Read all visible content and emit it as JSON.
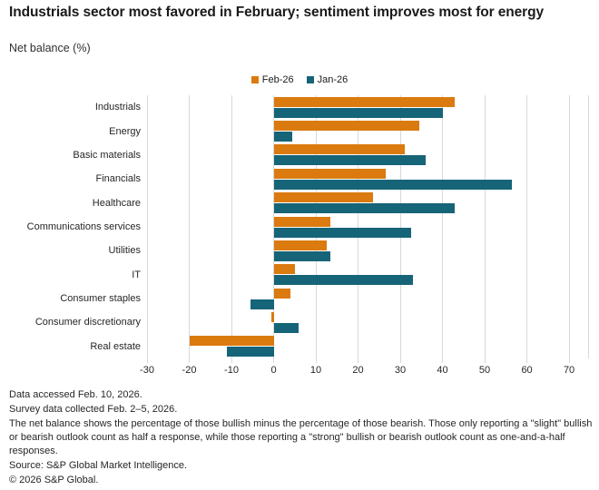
{
  "header": {
    "title": "Industrials sector most favored in February; sentiment improves most for energy",
    "subtitle": "Net balance (%)"
  },
  "chart_data": {
    "type": "bar",
    "orientation": "horizontal",
    "title": "Industrials sector most favored in February; sentiment improves most for energy",
    "subtitle": "Net balance (%)",
    "categories": [
      "Industrials",
      "Energy",
      "Basic materials",
      "Financials",
      "Healthcare",
      "Communications services",
      "Utilities",
      "IT",
      "Consumer staples",
      "Consumer discretionary",
      "Real estate"
    ],
    "series": [
      {
        "name": "Feb-26",
        "color": "#da7a0f",
        "values": [
          43,
          34.5,
          31,
          26.5,
          23.5,
          13.5,
          12.5,
          5,
          4,
          -0.5,
          -20
        ]
      },
      {
        "name": "Jan-26",
        "color": "#166478",
        "values": [
          40,
          4.5,
          36,
          56.5,
          43,
          32.5,
          13.5,
          33,
          -5.5,
          6,
          -11
        ]
      }
    ],
    "xlabel": "",
    "ylabel": "",
    "xlim": [
      -30,
      74.5
    ],
    "xticks": [
      -30,
      -20,
      -10,
      0,
      10,
      20,
      30,
      40,
      50,
      60,
      70
    ],
    "grid": "vertical",
    "gridline_color": "#d9d9d9",
    "legend_position": "top-center"
  },
  "footnotes": [
    "Data accessed Feb. 10, 2026.",
    "Survey data collected Feb. 2–5, 2026.",
    "The net balance shows the percentage of those bullish minus the percentage of those bearish. Those only reporting a \"slight\" bullish or bearish outlook count as half a response, while those reporting a \"strong\" bullish or bearish outlook count as one-and-a-half responses.",
    "Source: S&P Global Market Intelligence.",
    "© 2026 S&P Global."
  ]
}
